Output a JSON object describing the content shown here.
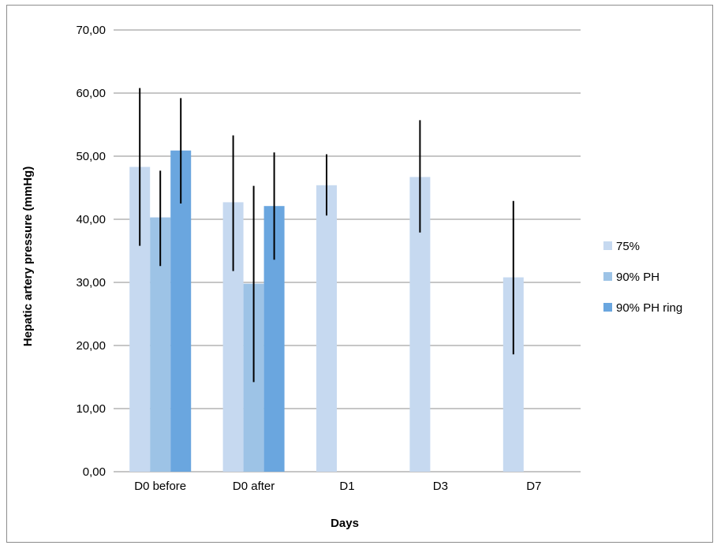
{
  "chart_data": {
    "type": "bar",
    "title": "",
    "xlabel": "Days",
    "ylabel": "Hepatic artery pressure (mmHg)",
    "ylim": [
      0,
      70
    ],
    "yticks": [
      "0,00",
      "10,00",
      "20,00",
      "30,00",
      "40,00",
      "50,00",
      "60,00",
      "70,00"
    ],
    "grid": true,
    "legend_position": "right",
    "categories": [
      "D0 before",
      "D0 after",
      "D1",
      "D3",
      "D7"
    ],
    "series": [
      {
        "name": "75%",
        "color": "#c6d9f0",
        "values": [
          48.3,
          42.7,
          45.4,
          46.7,
          30.8
        ],
        "err_low": [
          35.8,
          31.8,
          40.6,
          37.9,
          18.6
        ],
        "err_high": [
          60.8,
          53.3,
          50.3,
          55.7,
          42.9
        ]
      },
      {
        "name": "90% PH",
        "color": "#9dc3e6",
        "values": [
          40.3,
          29.8,
          null,
          null,
          null
        ],
        "err_low": [
          32.6,
          14.2,
          null,
          null,
          null
        ],
        "err_high": [
          47.7,
          45.3,
          null,
          null,
          null
        ]
      },
      {
        "name": "90% PH ring",
        "color": "#6aa6df",
        "values": [
          50.9,
          42.1,
          null,
          null,
          null
        ],
        "err_low": [
          42.5,
          33.6,
          null,
          null,
          null
        ],
        "err_high": [
          59.2,
          50.6,
          null,
          null,
          null
        ]
      }
    ]
  }
}
